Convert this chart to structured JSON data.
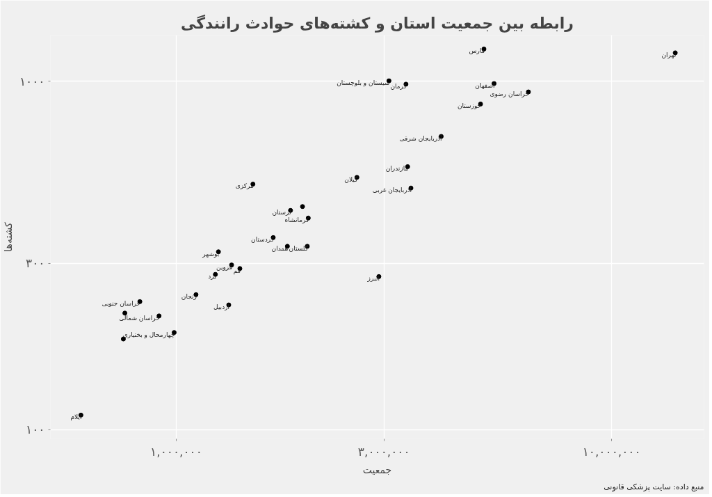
{
  "chart_data": {
    "type": "scatter",
    "title": "رابطه بین جمعیت استان و کشته‌های حوادث رانندگی",
    "xlabel": "جمعیت",
    "ylabel": "کشته‌ها",
    "log": "xy",
    "grid": true,
    "marker": "circle",
    "xlim": [
      514000,
      16300000
    ],
    "ylim": [
      94,
      1358
    ],
    "xticks": [
      {
        "value": 1000000,
        "label": "۱,۰۰۰,۰۰۰"
      },
      {
        "value": 3000000,
        "label": "۳,۰۰۰,۰۰۰"
      },
      {
        "value": 10000000,
        "label": "۱۰,۰۰۰,۰۰۰"
      }
    ],
    "yticks": [
      {
        "value": 100,
        "label": "۱۰۰"
      },
      {
        "value": 300,
        "label": "۳۰۰"
      },
      {
        "value": 1000,
        "label": "۱۰۰۰"
      }
    ],
    "series": [
      {
        "color": "#000000",
        "x": [
          14000000,
          5090000,
          3080000,
          3370000,
          5370000,
          6440000,
          5000000,
          4060000,
          3400000,
          2600000,
          3460000,
          1500000,
          1950000,
          1830000,
          2010000,
          1670000,
          1800000,
          2000000,
          1250000,
          1340000,
          1400000,
          1230000,
          2920000,
          1110000,
          1320000,
          825000,
          762000,
          913000,
          989000,
          756000,
          604000
        ],
        "values": [
          1208,
          1239,
          1004,
          982,
          986,
          933,
          861,
          695,
          569,
          530,
          494,
          507,
          437,
          426,
          405,
          356,
          336,
          336,
          324,
          297,
          290,
          279,
          275,
          244,
          228,
          233,
          216,
          212,
          190,
          182,
          110
        ]
      }
    ],
    "annotations": [
      {
        "text": "تهران",
        "x": 14000000,
        "y": 1208
      },
      {
        "text": "فارس",
        "x": 5090000,
        "y": 1239
      },
      {
        "text": "سیستان و بلوچستان",
        "x": 3080000,
        "y": 1004
      },
      {
        "text": "کرمان",
        "x": 3370000,
        "y": 982
      },
      {
        "text": "اصفهان",
        "x": 5370000,
        "y": 986
      },
      {
        "text": "خراسان رضوی",
        "x": 6440000,
        "y": 933
      },
      {
        "text": "خوزستان",
        "x": 5000000,
        "y": 861
      },
      {
        "text": "آذربایجان شرقی",
        "x": 4060000,
        "y": 695
      },
      {
        "text": "مازندران",
        "x": 3400000,
        "y": 569
      },
      {
        "text": "گیلان",
        "x": 2600000,
        "y": 530
      },
      {
        "text": "آذربایجان غربی",
        "x": 3460000,
        "y": 494
      },
      {
        "text": "مرکزی",
        "x": 1500000,
        "y": 507
      },
      {
        "text": "لرستان",
        "x": 1830000,
        "y": 426
      },
      {
        "text": "کرمانشاه",
        "x": 2010000,
        "y": 405
      },
      {
        "text": "کردستان",
        "x": 1670000,
        "y": 356
      },
      {
        "text": "همدان",
        "x": 1800000,
        "y": 336
      },
      {
        "text": "گلستان",
        "x": 2000000,
        "y": 336
      },
      {
        "text": "بوشهر",
        "x": 1250000,
        "y": 324
      },
      {
        "text": "قزوین",
        "x": 1340000,
        "y": 297
      },
      {
        "text": "قم",
        "x": 1400000,
        "y": 290
      },
      {
        "text": "یزد",
        "x": 1230000,
        "y": 279
      },
      {
        "text": "البرز",
        "x": 2920000,
        "y": 275
      },
      {
        "text": "زنجان",
        "x": 1110000,
        "y": 244
      },
      {
        "text": "اردبیل",
        "x": 1320000,
        "y": 228
      },
      {
        "text": "خراسان جنوبی",
        "x": 825000,
        "y": 233
      },
      {
        "text": "خراسان شمالی",
        "x": 913000,
        "y": 212
      },
      {
        "text": "چهارمحال و بختیاری",
        "x": 989000,
        "y": 190
      },
      {
        "text": "ایلام",
        "x": 604000,
        "y": 110
      },
      "منبع داده: سایت پزشکی قانونی"
    ]
  }
}
